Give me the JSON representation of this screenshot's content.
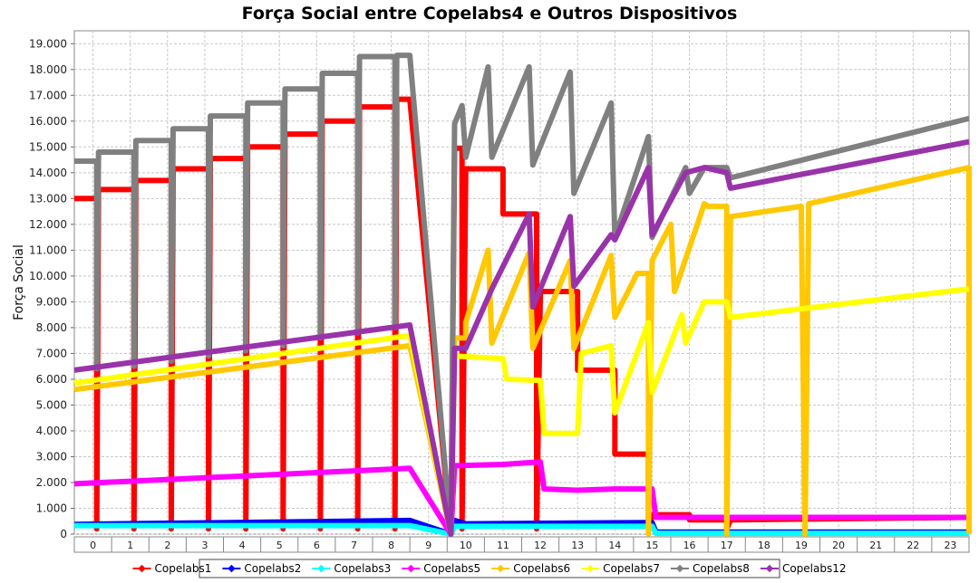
{
  "chart_data": {
    "type": "line",
    "title": "Força Social entre Copelabs4 e Outros Dispositivos",
    "xlabel": "",
    "ylabel": "Força Social",
    "xlim": [
      0,
      24
    ],
    "ylim": [
      0,
      19500
    ],
    "ytick_values": [
      0,
      1000,
      2000,
      3000,
      4000,
      5000,
      6000,
      7000,
      8000,
      9000,
      10000,
      11000,
      12000,
      13000,
      14000,
      15000,
      16000,
      17000,
      18000,
      19000
    ],
    "ytick_labels": [
      "0",
      "1.000",
      "2.000",
      "3.000",
      "4.000",
      "5.000",
      "6.000",
      "7.000",
      "8.000",
      "9.000",
      "10.000",
      "11.000",
      "12.000",
      "13.000",
      "14.000",
      "15.000",
      "16.000",
      "17.000",
      "18.000",
      "19.000"
    ],
    "categories": [
      "0",
      "1",
      "2",
      "3",
      "4",
      "5",
      "6",
      "7",
      "8",
      "9",
      "10",
      "11",
      "12",
      "13",
      "14",
      "15",
      "16",
      "17",
      "18",
      "19",
      "20",
      "21",
      "22",
      "23"
    ],
    "grid": true,
    "legend": "bottom",
    "series": [
      {
        "name": "Copelabs1",
        "color": "#ff0000",
        "points": [
          [
            0,
            13000
          ],
          [
            0.6,
            13000
          ],
          [
            0.6,
            200
          ],
          [
            0.65,
            13350
          ],
          [
            1.6,
            13350
          ],
          [
            1.6,
            200
          ],
          [
            1.65,
            13700
          ],
          [
            2.6,
            13700
          ],
          [
            2.6,
            200
          ],
          [
            2.65,
            14150
          ],
          [
            3.6,
            14150
          ],
          [
            3.6,
            200
          ],
          [
            3.65,
            14550
          ],
          [
            4.6,
            14550
          ],
          [
            4.6,
            200
          ],
          [
            4.65,
            15000
          ],
          [
            5.6,
            15000
          ],
          [
            5.6,
            200
          ],
          [
            5.65,
            15500
          ],
          [
            6.6,
            15500
          ],
          [
            6.6,
            200
          ],
          [
            6.65,
            16000
          ],
          [
            7.6,
            16000
          ],
          [
            7.6,
            200
          ],
          [
            7.65,
            16550
          ],
          [
            8.6,
            16550
          ],
          [
            8.6,
            200
          ],
          [
            8.65,
            16850
          ],
          [
            9.0,
            16850
          ],
          [
            10.1,
            0
          ],
          [
            10.2,
            14950
          ],
          [
            10.4,
            14950
          ],
          [
            10.4,
            200
          ],
          [
            10.5,
            14150
          ],
          [
            11.5,
            14150
          ],
          [
            11.5,
            12400
          ],
          [
            12.4,
            12400
          ],
          [
            12.4,
            200
          ],
          [
            12.5,
            9400
          ],
          [
            13.5,
            9400
          ],
          [
            13.5,
            6350
          ],
          [
            14.5,
            6350
          ],
          [
            14.5,
            3100
          ],
          [
            15.4,
            3100
          ],
          [
            15.4,
            200
          ],
          [
            15.5,
            750
          ],
          [
            16.5,
            750
          ],
          [
            16.5,
            550
          ],
          [
            17.5,
            550
          ],
          [
            17.5,
            200
          ],
          [
            17.6,
            550
          ],
          [
            24,
            650
          ]
        ]
      },
      {
        "name": "Copelabs2",
        "color": "#0000ff",
        "points": [
          [
            0,
            380
          ],
          [
            9.0,
            530
          ],
          [
            10.1,
            0
          ],
          [
            10.2,
            530
          ],
          [
            10.5,
            400
          ],
          [
            15.5,
            450
          ],
          [
            15.6,
            80
          ],
          [
            24,
            80
          ]
        ]
      },
      {
        "name": "Copelabs3",
        "color": "#00ffff",
        "points": [
          [
            0,
            330
          ],
          [
            9.0,
            330
          ],
          [
            10.1,
            0
          ],
          [
            10.2,
            300
          ],
          [
            15.5,
            300
          ],
          [
            15.6,
            30
          ],
          [
            24,
            30
          ]
        ]
      },
      {
        "name": "Copelabs5",
        "color": "#ff00ff",
        "points": [
          [
            0,
            1950
          ],
          [
            9.0,
            2550
          ],
          [
            10.1,
            0
          ],
          [
            10.2,
            2650
          ],
          [
            11.5,
            2700
          ],
          [
            12.5,
            2800
          ],
          [
            12.6,
            1750
          ],
          [
            13.5,
            1700
          ],
          [
            14.5,
            1750
          ],
          [
            15.5,
            1750
          ],
          [
            15.6,
            650
          ],
          [
            24,
            650
          ]
        ]
      },
      {
        "name": "Copelabs6",
        "color": "#ffc800",
        "points": [
          [
            0,
            5600
          ],
          [
            9.0,
            7300
          ],
          [
            10.1,
            0
          ],
          [
            10.2,
            7600
          ],
          [
            10.5,
            7600
          ],
          [
            10.5,
            8200
          ],
          [
            11.1,
            11000
          ],
          [
            11.2,
            7400
          ],
          [
            12.2,
            10900
          ],
          [
            12.3,
            7200
          ],
          [
            13.3,
            10600
          ],
          [
            13.4,
            7200
          ],
          [
            14.4,
            10800
          ],
          [
            14.5,
            8400
          ],
          [
            15.1,
            10100
          ],
          [
            15.4,
            10100
          ],
          [
            15.4,
            0
          ],
          [
            15.5,
            10600
          ],
          [
            16.0,
            12000
          ],
          [
            16.1,
            9400
          ],
          [
            16.9,
            12800
          ],
          [
            17.0,
            12700
          ],
          [
            17.5,
            12700
          ],
          [
            17.5,
            0
          ],
          [
            17.6,
            12300
          ],
          [
            19.5,
            12700
          ],
          [
            19.6,
            0
          ],
          [
            19.7,
            12800
          ],
          [
            24,
            14200
          ],
          [
            24,
            0
          ]
        ]
      },
      {
        "name": "Copelabs7",
        "color": "#ffff00",
        "points": [
          [
            0,
            5850
          ],
          [
            9.0,
            7700
          ],
          [
            10.1,
            0
          ],
          [
            10.2,
            6900
          ],
          [
            11.5,
            6800
          ],
          [
            11.6,
            6000
          ],
          [
            12.5,
            5950
          ],
          [
            12.6,
            3900
          ],
          [
            13.5,
            3900
          ],
          [
            13.6,
            7000
          ],
          [
            14.4,
            7300
          ],
          [
            14.5,
            4700
          ],
          [
            15.4,
            8200
          ],
          [
            15.5,
            5500
          ],
          [
            16.3,
            8500
          ],
          [
            16.4,
            7400
          ],
          [
            16.9,
            9000
          ],
          [
            17.5,
            9000
          ],
          [
            17.6,
            8400
          ],
          [
            24,
            9500
          ]
        ]
      },
      {
        "name": "Copelabs8",
        "color": "#808080",
        "points": [
          [
            0,
            14450
          ],
          [
            0.6,
            14450
          ],
          [
            0.6,
            6400
          ],
          [
            0.65,
            14800
          ],
          [
            1.6,
            14800
          ],
          [
            1.6,
            6500
          ],
          [
            1.65,
            15250
          ],
          [
            2.6,
            15250
          ],
          [
            2.6,
            6700
          ],
          [
            2.65,
            15700
          ],
          [
            3.6,
            15700
          ],
          [
            3.6,
            6900
          ],
          [
            3.65,
            16200
          ],
          [
            4.6,
            16200
          ],
          [
            4.6,
            7100
          ],
          [
            4.65,
            16700
          ],
          [
            5.6,
            16700
          ],
          [
            5.6,
            7300
          ],
          [
            5.65,
            17250
          ],
          [
            6.6,
            17250
          ],
          [
            6.6,
            7600
          ],
          [
            6.65,
            17850
          ],
          [
            7.6,
            17850
          ],
          [
            7.6,
            7800
          ],
          [
            7.65,
            18500
          ],
          [
            8.6,
            18500
          ],
          [
            8.6,
            8000
          ],
          [
            8.65,
            18550
          ],
          [
            9.0,
            18550
          ],
          [
            10.1,
            0
          ],
          [
            10.2,
            15900
          ],
          [
            10.4,
            16600
          ],
          [
            10.5,
            14600
          ],
          [
            11.1,
            18100
          ],
          [
            11.2,
            14600
          ],
          [
            12.2,
            18100
          ],
          [
            12.3,
            14300
          ],
          [
            13.3,
            17900
          ],
          [
            13.4,
            13200
          ],
          [
            14.4,
            16700
          ],
          [
            14.5,
            11500
          ],
          [
            15.4,
            15400
          ],
          [
            15.5,
            11500
          ],
          [
            16.4,
            14200
          ],
          [
            16.5,
            13200
          ],
          [
            16.9,
            14200
          ],
          [
            17.5,
            14200
          ],
          [
            17.6,
            13800
          ],
          [
            24,
            16100
          ]
        ]
      },
      {
        "name": "Copelabs12",
        "color": "#9933aa",
        "points": [
          [
            0,
            6350
          ],
          [
            9.0,
            8100
          ],
          [
            10.1,
            0
          ],
          [
            10.2,
            7200
          ],
          [
            10.5,
            7200
          ],
          [
            11.2,
            9500
          ],
          [
            12.2,
            12400
          ],
          [
            12.3,
            8800
          ],
          [
            13.3,
            12300
          ],
          [
            13.4,
            9600
          ],
          [
            14.4,
            11600
          ],
          [
            14.5,
            11400
          ],
          [
            15.4,
            14200
          ],
          [
            15.5,
            11600
          ],
          [
            16.4,
            14000
          ],
          [
            16.9,
            14200
          ],
          [
            17.5,
            14000
          ],
          [
            17.6,
            13400
          ],
          [
            24,
            15200
          ]
        ]
      }
    ]
  }
}
